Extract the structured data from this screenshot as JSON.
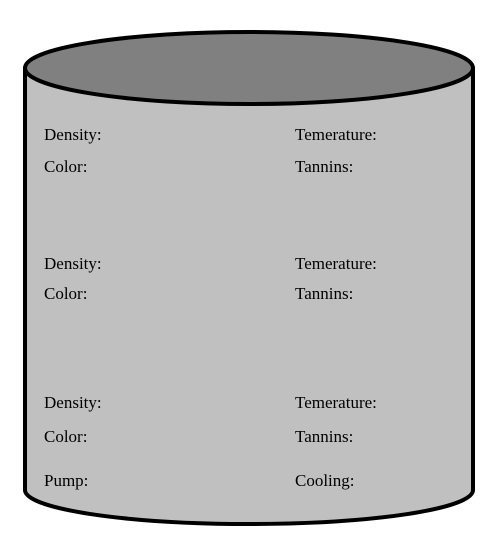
{
  "colors": {
    "tank_body": "#c0c0c0",
    "tank_top": "#808080",
    "outline": "#000000"
  },
  "sections": [
    {
      "left": [
        "Density:",
        "Color:"
      ],
      "right": [
        "Temerature:",
        "Tannins:"
      ]
    },
    {
      "left": [
        "Density:",
        "Color:"
      ],
      "right": [
        "Temerature:",
        "Tannins:"
      ]
    },
    {
      "left": [
        "Density:",
        "Color:"
      ],
      "right": [
        "Temerature:",
        "Tannins:"
      ]
    }
  ],
  "footer": {
    "left": "Pump:",
    "right": "Cooling:"
  }
}
